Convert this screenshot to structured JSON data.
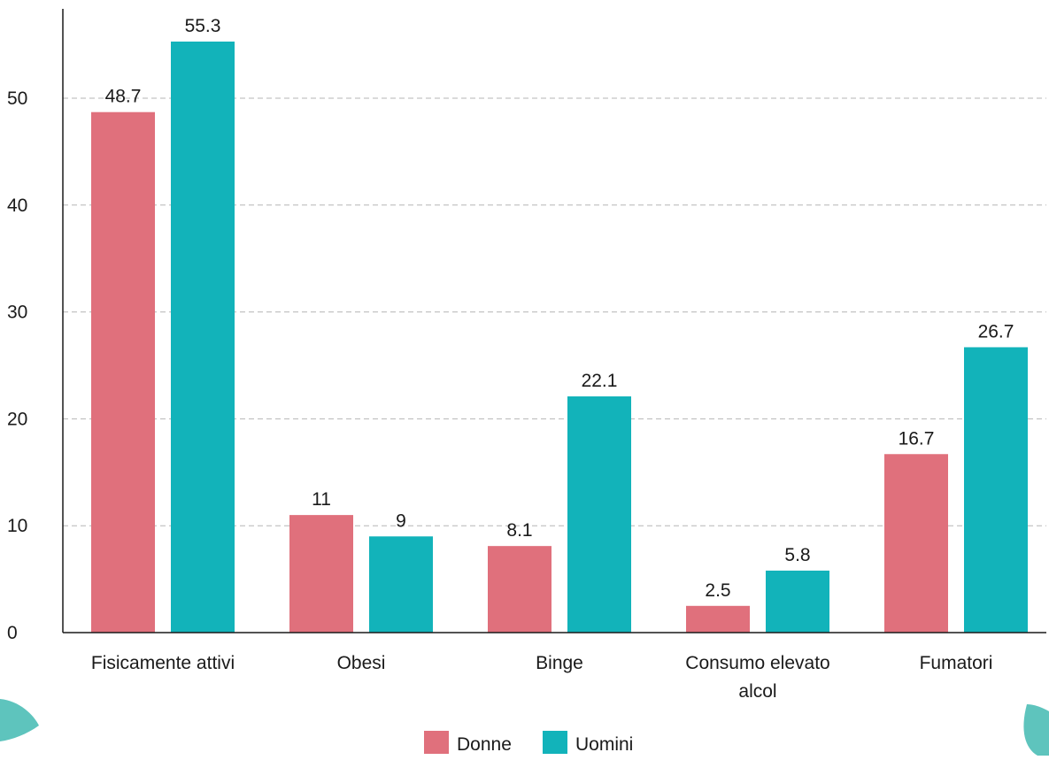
{
  "chart_data": {
    "type": "bar",
    "categories": [
      [
        "Fisicamente attivi"
      ],
      [
        "Obesi"
      ],
      [
        "Binge"
      ],
      [
        "Consumo elevato",
        "alcol"
      ],
      [
        "Fumatori"
      ]
    ],
    "series": [
      {
        "name": "Donne",
        "values": [
          48.7,
          11,
          8.1,
          2.5,
          16.7
        ],
        "color": "#e0707c"
      },
      {
        "name": "Uomini",
        "values": [
          55.3,
          9,
          22.1,
          5.8,
          26.7
        ],
        "color": "#12b3ba"
      }
    ],
    "value_labels": [
      [
        "48.7",
        "11",
        "8.1",
        "2.5",
        "16.7"
      ],
      [
        "55.3",
        "9",
        "22.1",
        "5.8",
        "26.7"
      ]
    ],
    "yticks": [
      "0",
      "10",
      "20",
      "30",
      "40",
      "50"
    ],
    "ylim": [
      0,
      58
    ],
    "grid": true,
    "legend_position": "bottom-center",
    "title": "",
    "xlabel": "",
    "ylabel": ""
  }
}
